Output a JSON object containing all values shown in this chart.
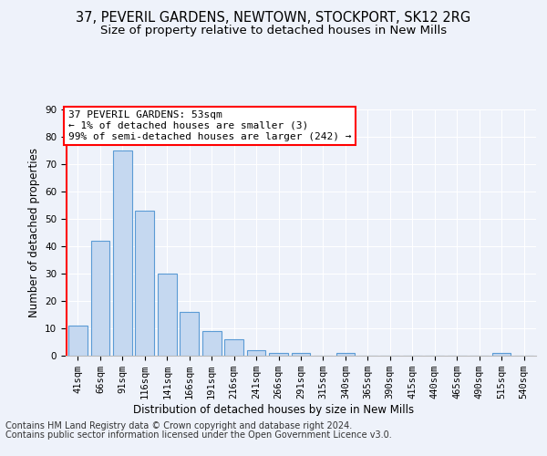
{
  "title1": "37, PEVERIL GARDENS, NEWTOWN, STOCKPORT, SK12 2RG",
  "title2": "Size of property relative to detached houses in New Mills",
  "xlabel": "Distribution of detached houses by size in New Mills",
  "ylabel": "Number of detached properties",
  "bar_color": "#c5d8f0",
  "bar_edge_color": "#5b9bd5",
  "categories": [
    "41sqm",
    "66sqm",
    "91sqm",
    "116sqm",
    "141sqm",
    "166sqm",
    "191sqm",
    "216sqm",
    "241sqm",
    "266sqm",
    "291sqm",
    "315sqm",
    "340sqm",
    "365sqm",
    "390sqm",
    "415sqm",
    "440sqm",
    "465sqm",
    "490sqm",
    "515sqm",
    "540sqm"
  ],
  "values": [
    11,
    42,
    75,
    53,
    30,
    16,
    9,
    6,
    2,
    1,
    1,
    0,
    1,
    0,
    0,
    0,
    0,
    0,
    0,
    1,
    0
  ],
  "ylim": [
    0,
    90
  ],
  "yticks": [
    0,
    10,
    20,
    30,
    40,
    50,
    60,
    70,
    80,
    90
  ],
  "annotation_box_text": "37 PEVERIL GARDENS: 53sqm\n← 1% of detached houses are smaller (3)\n99% of semi-detached houses are larger (242) →",
  "footer1": "Contains HM Land Registry data © Crown copyright and database right 2024.",
  "footer2": "Contains public sector information licensed under the Open Government Licence v3.0.",
  "background_color": "#eef2fa",
  "grid_color": "#ffffff",
  "title_fontsize": 10.5,
  "subtitle_fontsize": 9.5,
  "axis_label_fontsize": 8.5,
  "tick_fontsize": 7.5,
  "annotation_fontsize": 8,
  "footer_fontsize": 7
}
